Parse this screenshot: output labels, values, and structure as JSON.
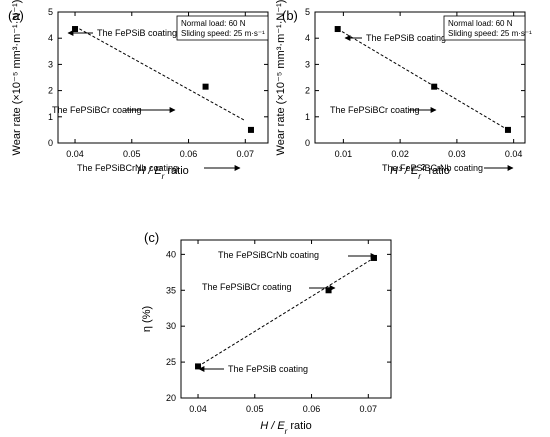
{
  "figure": {
    "panels": [
      {
        "label": "(a)",
        "ylabel": "Wear rate (×10⁻⁵ mm³·m⁻¹·N⁻¹)",
        "xlabel_main": "H / E",
        "xlabel_sub": "r",
        "xlabel_suffix": " ratio",
        "conditions": [
          "Normal load: 60 N",
          "Sliding speed: 25 m·s⁻¹"
        ]
      },
      {
        "label": "(b)",
        "ylabel": "Wear rate (×10⁻⁵ mm³·m⁻¹·N⁻¹)",
        "xlabel_main": "H³ / E",
        "xlabel_sub": "r",
        "xlabel_sup": "2",
        "xlabel_suffix": " ratio",
        "conditions": [
          "Normal load: 60 N",
          "Sliding speed: 25 m·s⁻¹"
        ]
      },
      {
        "label": "(c)",
        "ylabel": "η (%)",
        "xlabel_main": "H / E",
        "xlabel_sub": "r",
        "xlabel_suffix": " ratio",
        "conditions": []
      }
    ]
  },
  "chart_data": [
    {
      "type": "scatter",
      "panel": "(a)",
      "x": [
        0.04,
        0.063,
        0.071
      ],
      "y": [
        4.35,
        2.15,
        0.5
      ],
      "point_labels": [
        "The FePSiB coating",
        "The FePSiBCr coating",
        "The FePSiBCrNb coating"
      ],
      "xlim": [
        0.037,
        0.074
      ],
      "ylim": [
        0,
        5
      ],
      "xticks": [
        0.04,
        0.05,
        0.06,
        0.07
      ],
      "xtick_labels": [
        "0.04",
        "0.05",
        "0.06",
        "0.07"
      ],
      "yticks": [
        0,
        1,
        2,
        3,
        4,
        5
      ],
      "ytick_labels": [
        "0",
        "1",
        "2",
        "3",
        "4",
        "5"
      ],
      "trend_line": [
        [
          0.04,
          4.45
        ],
        [
          0.07,
          0.85
        ]
      ],
      "grid": false,
      "legend": "none"
    },
    {
      "type": "scatter",
      "panel": "(b)",
      "x": [
        0.009,
        0.026,
        0.039
      ],
      "y": [
        4.35,
        2.15,
        0.5
      ],
      "point_labels": [
        "The FePSiB coating",
        "The FePSiBCr coating",
        "The FePSiBCrNb coating"
      ],
      "xlim": [
        0.005,
        0.042
      ],
      "ylim": [
        0,
        5
      ],
      "xticks": [
        0.01,
        0.02,
        0.03,
        0.04
      ],
      "xtick_labels": [
        "0.01",
        "0.02",
        "0.03",
        "0.04"
      ],
      "yticks": [
        0,
        1,
        2,
        3,
        4,
        5
      ],
      "ytick_labels": [
        "0",
        "1",
        "2",
        "3",
        "4",
        "5"
      ],
      "trend_line": [
        [
          0.009,
          4.35
        ],
        [
          0.039,
          0.5
        ]
      ],
      "grid": false,
      "legend": "none"
    },
    {
      "type": "scatter",
      "panel": "(c)",
      "x": [
        0.04,
        0.063,
        0.071
      ],
      "y": [
        24.4,
        35.0,
        39.5
      ],
      "point_labels": [
        "The FePSiB coating",
        "The FePSiBCr coating",
        "The FePSiBCrNb coating"
      ],
      "xlim": [
        0.037,
        0.074
      ],
      "ylim": [
        20,
        42
      ],
      "xticks": [
        0.04,
        0.05,
        0.06,
        0.07
      ],
      "xtick_labels": [
        "0.04",
        "0.05",
        "0.06",
        "0.07"
      ],
      "yticks": [
        20,
        25,
        30,
        35,
        40
      ],
      "ytick_labels": [
        "20",
        "25",
        "30",
        "35",
        "40"
      ],
      "trend_line": [
        [
          0.04,
          24.4
        ],
        [
          0.071,
          39.5
        ]
      ],
      "grid": false,
      "legend": "none"
    }
  ]
}
